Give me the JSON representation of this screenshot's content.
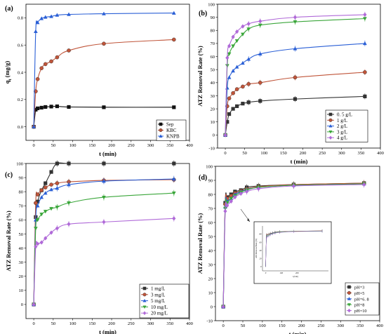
{
  "chart_data": [
    {
      "id": "a",
      "type": "line",
      "panel_label": "(a)",
      "xlabel": "t (min)",
      "ylabel": "q",
      "ylabel_sub": "t",
      "ylabel_unit": " (mg/g)",
      "xlim": [
        -20,
        400
      ],
      "ylim": [
        -0.1,
        0.9
      ],
      "xticks": [
        0,
        50,
        100,
        150,
        200,
        250,
        300,
        350,
        400
      ],
      "yticks": [
        0.0,
        0.2,
        0.4,
        0.6,
        0.8
      ],
      "ytick_labels": [
        "0.0",
        "0.2",
        "0.4",
        "0.6",
        "0.8"
      ],
      "legend": "bottom-right",
      "series": [
        {
          "name": "Sep",
          "color": "#111111",
          "marker": "square",
          "x": [
            0,
            5,
            10,
            20,
            30,
            45,
            60,
            90,
            180,
            360
          ],
          "y": [
            0.0,
            0.125,
            0.135,
            0.14,
            0.145,
            0.148,
            0.15,
            0.145,
            0.143,
            0.143
          ]
        },
        {
          "name": "KBC",
          "color": "#c0553a",
          "marker": "circle",
          "x": [
            0,
            5,
            10,
            20,
            30,
            45,
            60,
            90,
            180,
            360
          ],
          "y": [
            0.0,
            0.26,
            0.35,
            0.43,
            0.46,
            0.48,
            0.51,
            0.56,
            0.61,
            0.64
          ]
        },
        {
          "name": "KNPB",
          "color": "#2a5fd6",
          "marker": "triangle",
          "x": [
            0,
            5,
            10,
            20,
            30,
            45,
            60,
            90,
            180,
            360
          ],
          "y": [
            0.0,
            0.7,
            0.765,
            0.795,
            0.805,
            0.81,
            0.82,
            0.825,
            0.83,
            0.835
          ]
        }
      ]
    },
    {
      "id": "b",
      "type": "line",
      "panel_label": "(b)",
      "xlabel": "t (min)",
      "ylabel": "ATZ Removal Rate (%)",
      "xlim": [
        -20,
        400
      ],
      "ylim": [
        -10,
        100
      ],
      "xticks": [
        0,
        50,
        100,
        150,
        200,
        250,
        300,
        350,
        400
      ],
      "yticks": [
        -10,
        0,
        10,
        20,
        30,
        40,
        50,
        60,
        70,
        80,
        90,
        100
      ],
      "legend": "right",
      "series": [
        {
          "name": "0. 5 g/L",
          "color": "#333333",
          "marker": "square",
          "x": [
            0,
            5,
            10,
            20,
            30,
            45,
            60,
            90,
            180,
            360
          ],
          "y": [
            0,
            10,
            16,
            20,
            22,
            24,
            25,
            26,
            27.5,
            29.5
          ]
        },
        {
          "name": "1 g/L",
          "color": "#c0553a",
          "marker": "circle",
          "x": [
            0,
            5,
            10,
            20,
            30,
            45,
            60,
            90,
            180,
            360
          ],
          "y": [
            0,
            22,
            28,
            32,
            35,
            37,
            39,
            40,
            44,
            48
          ]
        },
        {
          "name": "2 g/L",
          "color": "#2a5fd6",
          "marker": "triangle",
          "x": [
            0,
            5,
            10,
            20,
            30,
            45,
            60,
            90,
            180,
            360
          ],
          "y": [
            0,
            36,
            44,
            49,
            52,
            55,
            58,
            62,
            66,
            70
          ]
        },
        {
          "name": "3 g/L",
          "color": "#3aa63a",
          "marker": "triangle-down",
          "x": [
            0,
            5,
            10,
            20,
            30,
            45,
            60,
            90,
            180,
            360
          ],
          "y": [
            0,
            53,
            62,
            68,
            72,
            77,
            81,
            84,
            86.5,
            89
          ]
        },
        {
          "name": "4 g/L",
          "color": "#b06ad8",
          "marker": "diamond",
          "x": [
            0,
            5,
            10,
            20,
            30,
            45,
            60,
            90,
            180,
            360
          ],
          "y": [
            0,
            59,
            68,
            75,
            79,
            83,
            85,
            87,
            90,
            92
          ]
        }
      ]
    },
    {
      "id": "c",
      "type": "line",
      "panel_label": "(c)",
      "xlabel": "t (min)",
      "ylabel": "ATZ Removal Rate (%)",
      "xlim": [
        -20,
        400
      ],
      "ylim": [
        -10,
        100
      ],
      "xticks": [
        0,
        50,
        100,
        150,
        200,
        250,
        300,
        350,
        400
      ],
      "yticks": [
        0,
        10,
        20,
        30,
        40,
        50,
        60,
        70,
        80,
        90,
        100
      ],
      "legend": "bottom-right",
      "series": [
        {
          "name": "1  mg/L",
          "color": "#333333",
          "marker": "square",
          "x": [
            0,
            5,
            10,
            20,
            30,
            45,
            60,
            90,
            180,
            360
          ],
          "y": [
            0,
            62,
            73,
            81,
            86,
            94,
            100,
            100,
            100,
            100
          ]
        },
        {
          "name": "3  mg/L",
          "color": "#c0553a",
          "marker": "circle",
          "x": [
            0,
            5,
            10,
            20,
            30,
            45,
            60,
            90,
            180,
            360
          ],
          "y": [
            0,
            72,
            78,
            81,
            83,
            85,
            86,
            87,
            88,
            88.5
          ]
        },
        {
          "name": "5  mg/L",
          "color": "#2a5fd6",
          "marker": "triangle",
          "x": [
            0,
            5,
            10,
            20,
            30,
            45,
            60,
            90,
            180,
            360
          ],
          "y": [
            0,
            60,
            70,
            76,
            79,
            81.5,
            82.5,
            85,
            87.5,
            89
          ]
        },
        {
          "name": "10  mg/L",
          "color": "#3aa63a",
          "marker": "triangle-down",
          "x": [
            0,
            5,
            10,
            20,
            30,
            45,
            60,
            90,
            180,
            360
          ],
          "y": [
            0,
            54,
            60,
            64,
            66,
            68,
            69,
            72,
            76,
            79
          ]
        },
        {
          "name": "20  mg/L",
          "color": "#b06ad8",
          "marker": "diamond",
          "x": [
            0,
            5,
            10,
            20,
            30,
            45,
            60,
            90,
            180,
            360
          ],
          "y": [
            0,
            41,
            43,
            44,
            47,
            51,
            54,
            57,
            58.5,
            61
          ]
        }
      ]
    },
    {
      "id": "d",
      "type": "line",
      "panel_label": "(d)",
      "xlabel": "t (min)",
      "ylabel": "ATZ Removal Rate (%)",
      "xlim": [
        -20,
        400
      ],
      "ylim": [
        -10,
        100
      ],
      "xticks": [
        0,
        50,
        100,
        150,
        200,
        250,
        300,
        350,
        400
      ],
      "yticks": [
        -10,
        0,
        10,
        20,
        30,
        40,
        50,
        60,
        70,
        80,
        90,
        100
      ],
      "legend": "bottom-right",
      "series": [
        {
          "name": "pH=3",
          "color": "#333333",
          "marker": "square",
          "x": [
            0,
            5,
            10,
            20,
            30,
            45,
            60,
            90,
            180,
            360
          ],
          "y": [
            0,
            74,
            78,
            80,
            82,
            83,
            85,
            86,
            87,
            88
          ]
        },
        {
          "name": "pH=5",
          "color": "#c0553a",
          "marker": "circle",
          "x": [
            0,
            5,
            10,
            20,
            30,
            45,
            60,
            90,
            180,
            360
          ],
          "y": [
            0,
            73,
            77,
            79,
            81,
            82.5,
            84,
            85.5,
            87,
            88
          ]
        },
        {
          "name": "pH=6. 8",
          "color": "#2a5fd6",
          "marker": "triangle",
          "x": [
            0,
            5,
            10,
            20,
            30,
            45,
            60,
            90,
            180,
            360
          ],
          "y": [
            0,
            71,
            75,
            77,
            80,
            82,
            83.5,
            85,
            86.5,
            87.5
          ]
        },
        {
          "name": "pH=8",
          "color": "#3aa63a",
          "marker": "triangle-down",
          "x": [
            0,
            5,
            10,
            20,
            30,
            45,
            60,
            90,
            180,
            360
          ],
          "y": [
            0,
            70,
            74,
            77,
            79,
            81.5,
            83,
            85,
            86.5,
            87.5
          ]
        },
        {
          "name": "pH=10",
          "color": "#b06ad8",
          "marker": "diamond",
          "x": [
            0,
            5,
            10,
            20,
            30,
            45,
            60,
            90,
            180,
            360
          ],
          "y": [
            0,
            68,
            72,
            75,
            78,
            80.5,
            82,
            84,
            86,
            87
          ]
        }
      ],
      "inset": {
        "ylabel": "ATZ Removal Rate (%)",
        "xlabel": "t (min)",
        "xticks": [
          0,
          100,
          200
        ],
        "yticks": [
          0,
          20,
          40,
          60,
          80
        ],
        "xlim": [
          -20,
          400
        ],
        "ylim": [
          -10,
          100
        ]
      }
    }
  ]
}
